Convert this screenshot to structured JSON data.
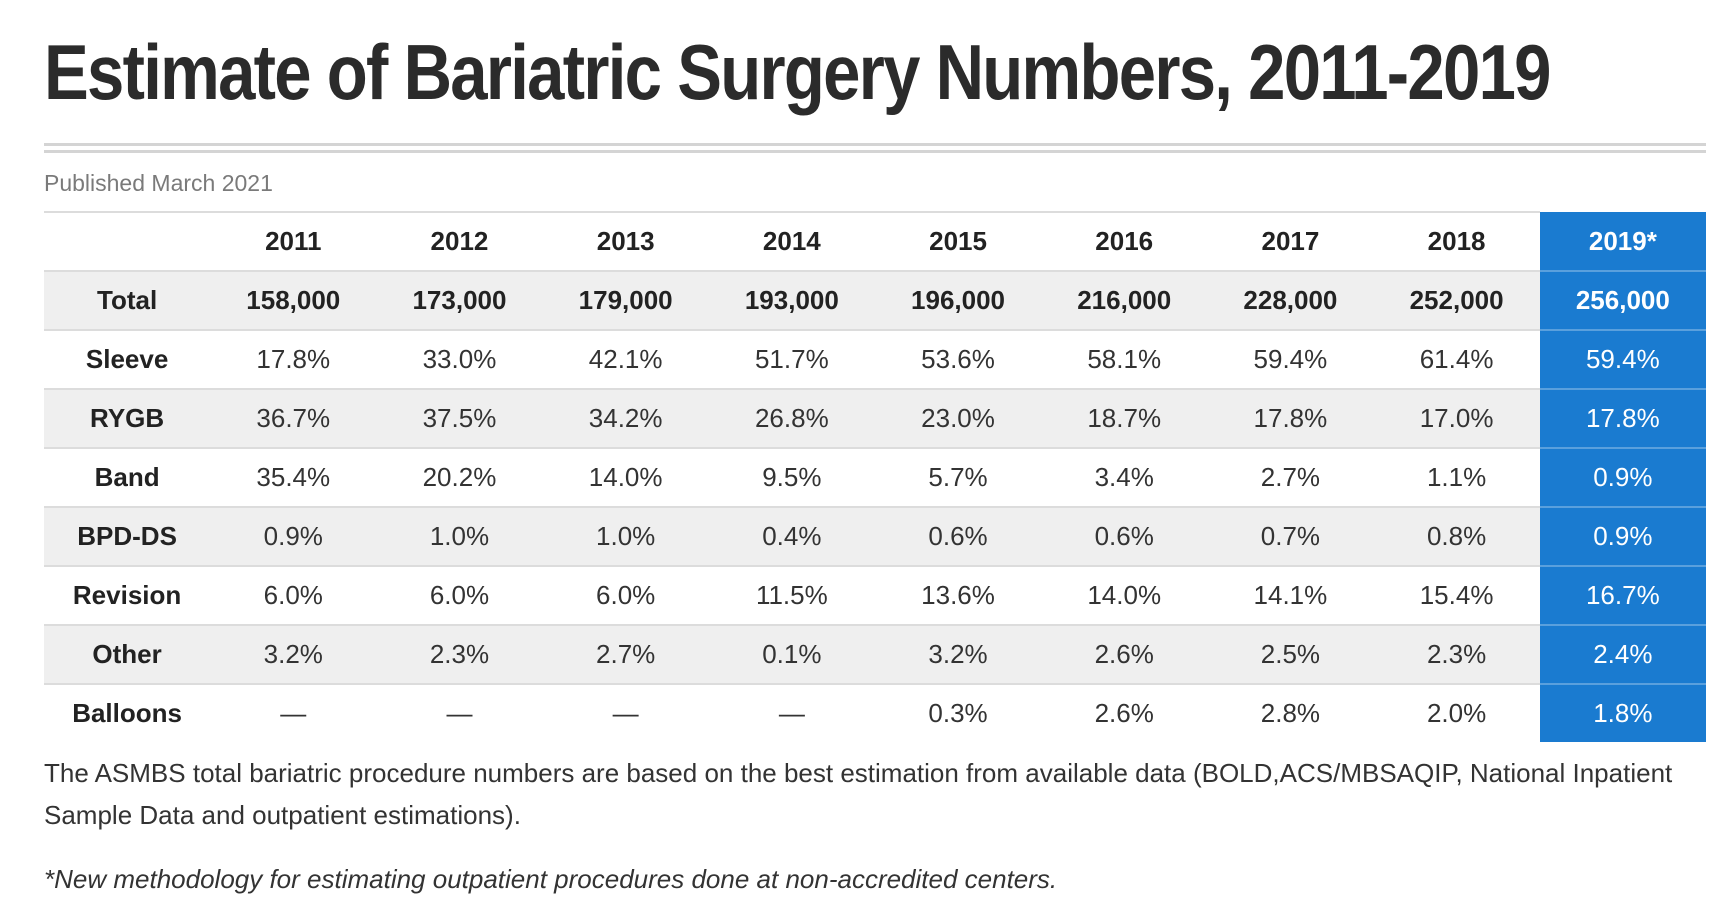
{
  "title": "Estimate of Bariatric Surgery Numbers, 2011-2019",
  "published": "Published March 2021",
  "table": {
    "header": [
      "",
      "2011",
      "2012",
      "2013",
      "2014",
      "2015",
      "2016",
      "2017",
      "2018",
      "2019*"
    ],
    "rows": [
      {
        "label": "Total",
        "values": [
          "158,000",
          "173,000",
          "179,000",
          "193,000",
          "196,000",
          "216,000",
          "228,000",
          "252,000",
          "256,000"
        ]
      },
      {
        "label": "Sleeve",
        "values": [
          "17.8%",
          "33.0%",
          "42.1%",
          "51.7%",
          "53.6%",
          "58.1%",
          "59.4%",
          "61.4%",
          "59.4%"
        ]
      },
      {
        "label": "RYGB",
        "values": [
          "36.7%",
          "37.5%",
          "34.2%",
          "26.8%",
          "23.0%",
          "18.7%",
          "17.8%",
          "17.0%",
          "17.8%"
        ]
      },
      {
        "label": "Band",
        "values": [
          "35.4%",
          "20.2%",
          "14.0%",
          "9.5%",
          "5.7%",
          "3.4%",
          "2.7%",
          "1.1%",
          "0.9%"
        ]
      },
      {
        "label": "BPD-DS",
        "values": [
          "0.9%",
          "1.0%",
          "1.0%",
          "0.4%",
          "0.6%",
          "0.6%",
          "0.7%",
          "0.8%",
          "0.9%"
        ]
      },
      {
        "label": "Revision",
        "values": [
          "6.0%",
          "6.0%",
          "6.0%",
          "11.5%",
          "13.6%",
          "14.0%",
          "14.1%",
          "15.4%",
          "16.7%"
        ]
      },
      {
        "label": "Other",
        "values": [
          "3.2%",
          "2.3%",
          "2.7%",
          "0.1%",
          "3.2%",
          "2.6%",
          "2.5%",
          "2.3%",
          "2.4%"
        ]
      },
      {
        "label": "Balloons",
        "values": [
          "—",
          "—",
          "—",
          "—",
          "0.3%",
          "2.6%",
          "2.8%",
          "2.0%",
          "1.8%"
        ]
      }
    ]
  },
  "note": "The ASMBS total bariatric procedure numbers are based on the best estimation from available data (BOLD,ACS/MBSAQIP, National Inpatient Sample Data and outpatient estimations).",
  "footnote": "*New methodology for estimating outpatient procedures done at non-accredited centers.",
  "colors": {
    "highlight": "#1a7bd0",
    "row_alt": "#efefef",
    "title": "#2b2b2b",
    "published": "#7a7a7a"
  }
}
